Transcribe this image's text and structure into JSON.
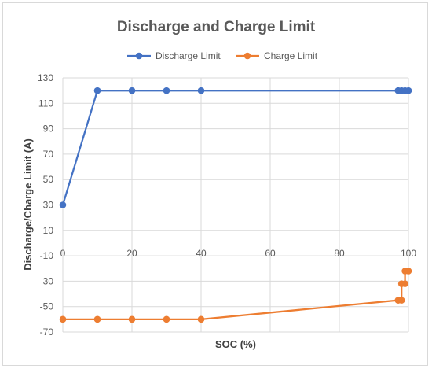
{
  "chart_data": {
    "type": "line",
    "title": "Discharge and Charge Limit",
    "xlabel": "SOC (%)",
    "ylabel": "Discharge/Charge Limit (A)",
    "xlim": [
      0,
      100
    ],
    "ylim": [
      -70,
      130
    ],
    "xticks": [
      0,
      20,
      40,
      60,
      80,
      100
    ],
    "yticks": [
      130,
      110,
      90,
      70,
      50,
      30,
      10,
      -10,
      -30,
      -50,
      -70
    ],
    "grid": true,
    "legend": "top",
    "series": [
      {
        "name": "Discharge Limit",
        "color": "#4472c4",
        "x": [
          0,
          10,
          20,
          30,
          40,
          97,
          98,
          99,
          100
        ],
        "y": [
          30,
          120,
          120,
          120,
          120,
          120,
          120,
          120,
          120
        ]
      },
      {
        "name": "Charge Limit",
        "color": "#ed7d31",
        "x": [
          0,
          10,
          20,
          30,
          40,
          97,
          98,
          98,
          99,
          99,
          100
        ],
        "y": [
          -60,
          -60,
          -60,
          -60,
          -60,
          -45,
          -45,
          -32,
          -32,
          -22,
          -22
        ]
      }
    ]
  }
}
